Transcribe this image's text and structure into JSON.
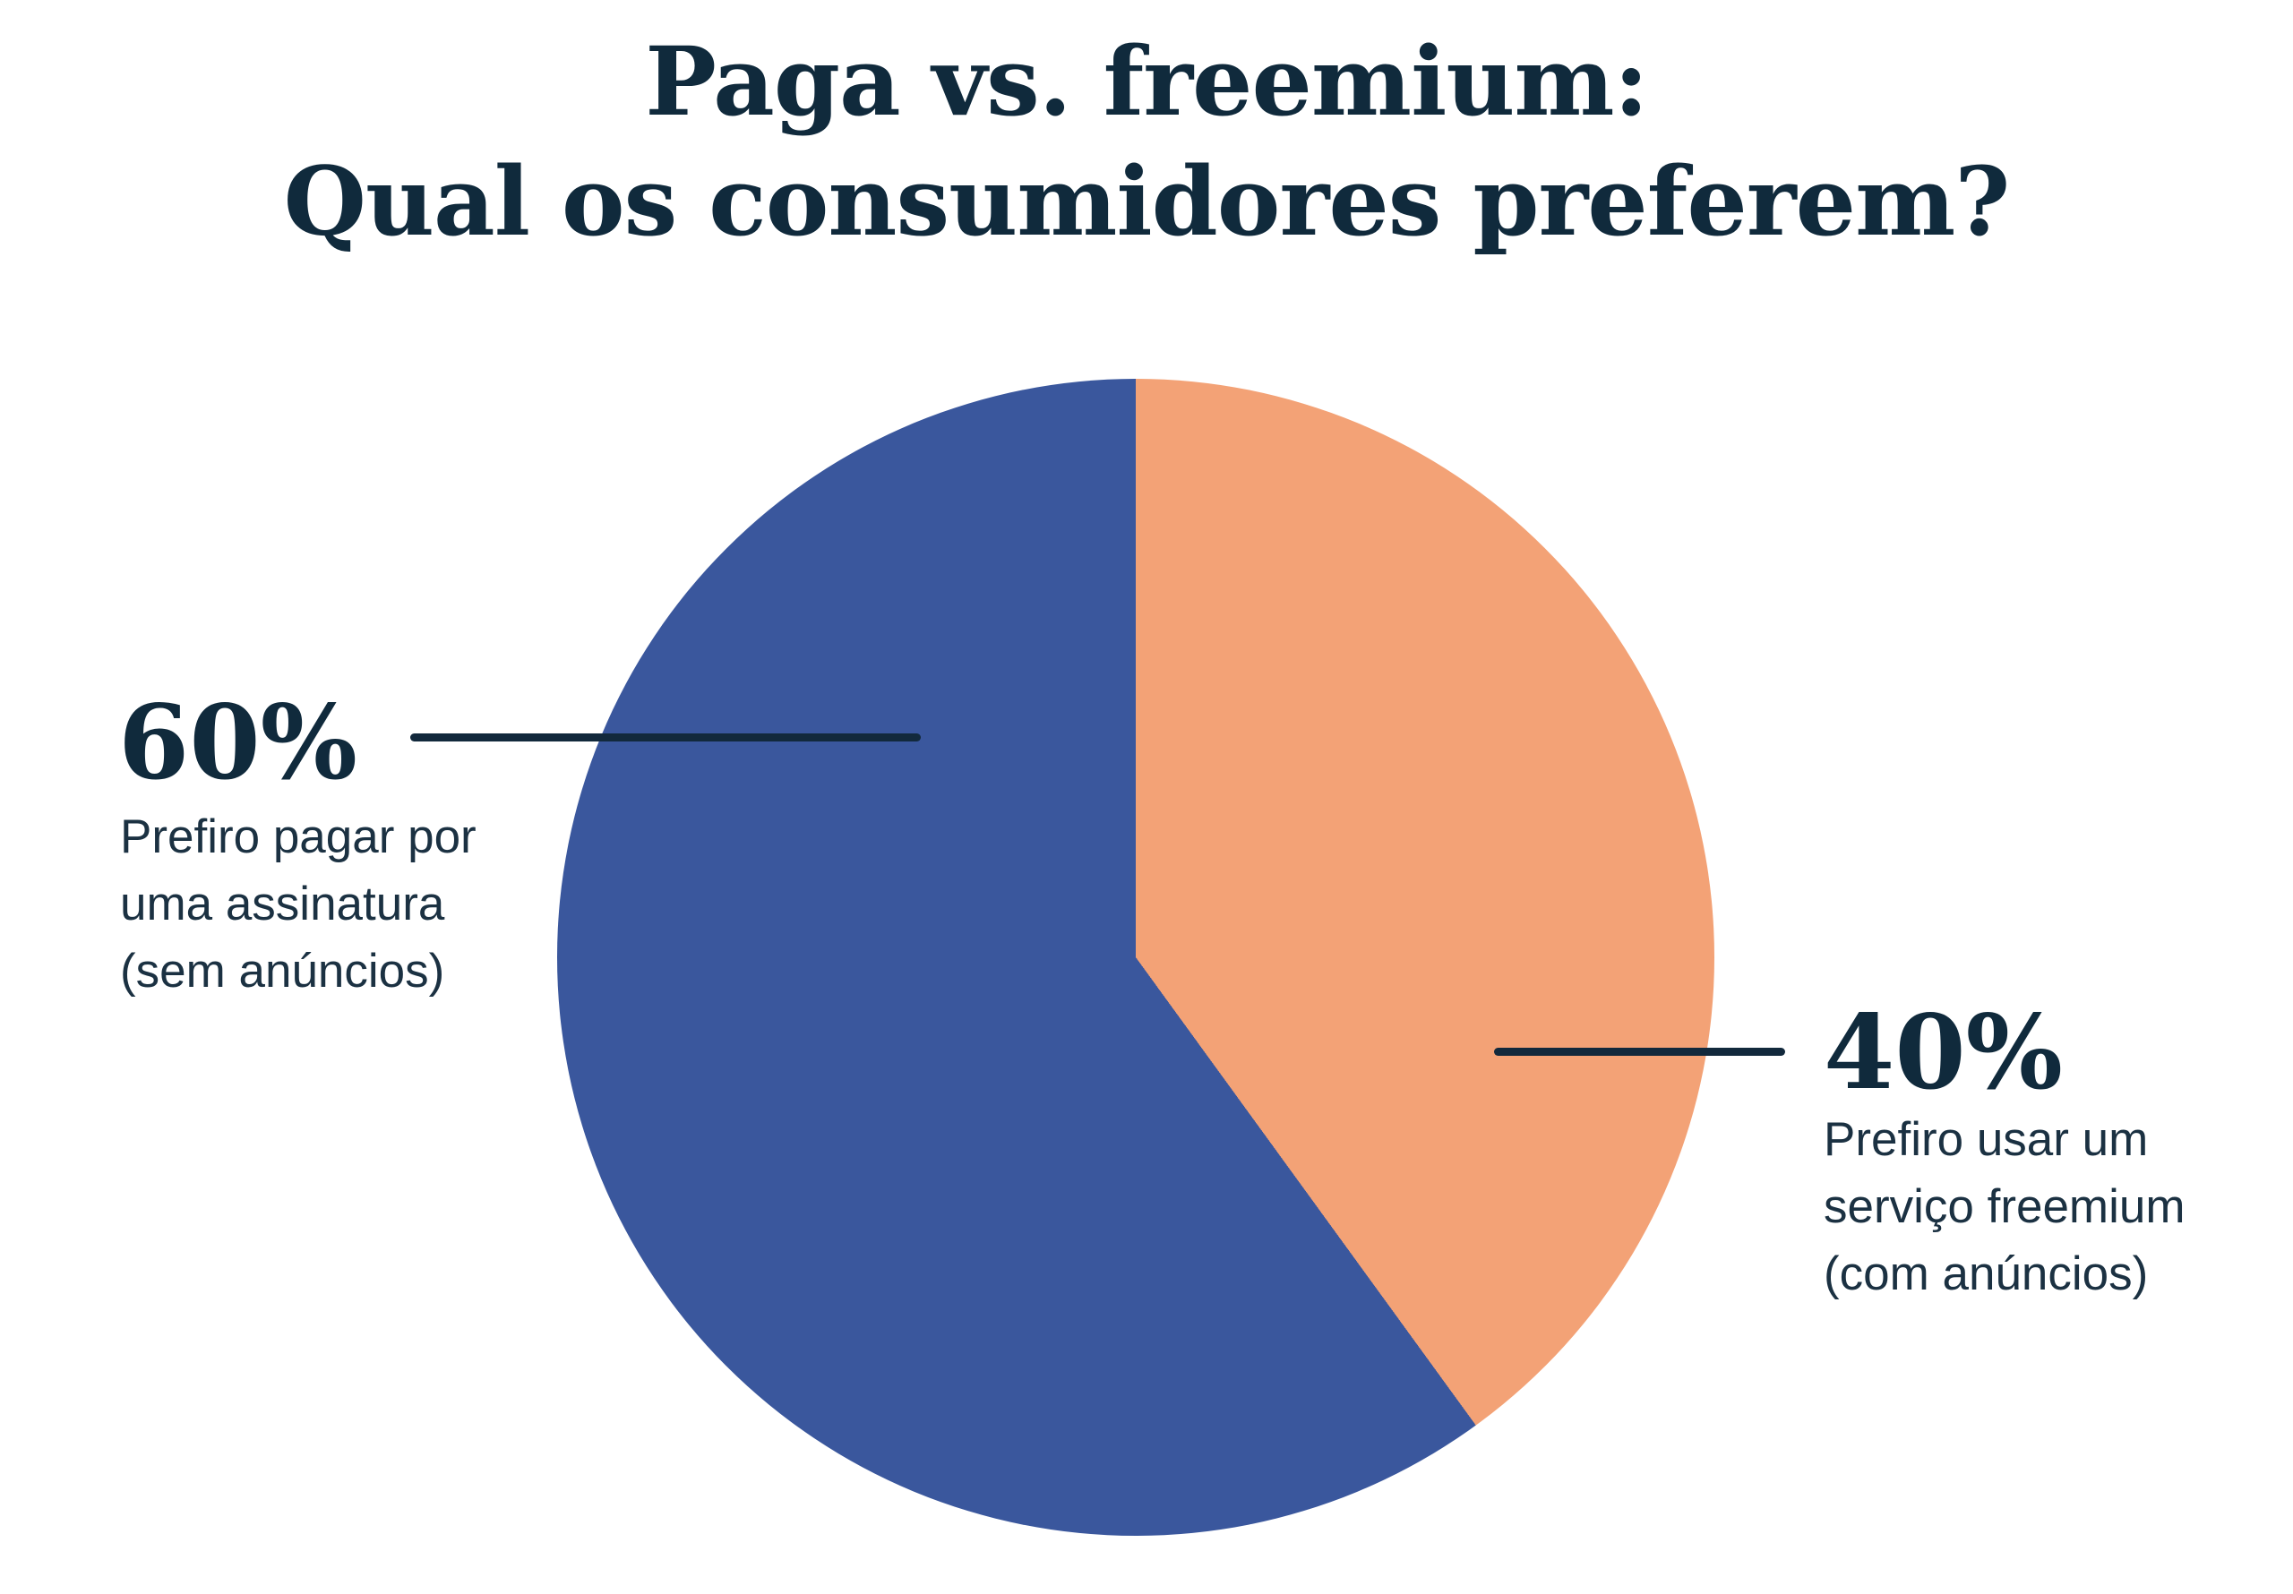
{
  "title": {
    "line1": "Paga vs. freemium:",
    "line2": "Qual os consumidores preferem?"
  },
  "chart_data": {
    "type": "pie",
    "title": "Paga vs. freemium: Qual os consumidores preferem?",
    "unit": "%",
    "direction": "clockwise",
    "start_angle_deg": 0,
    "rotation_deg": 144,
    "legend_position": "callouts-left-right",
    "slices": [
      {
        "label": "Prefiro pagar por uma assinatura (sem anúncios)",
        "value": 60,
        "percent_label": "60%",
        "color": "#3A579D",
        "callout_side": "left"
      },
      {
        "label": "Prefiro usar um serviço freemium (com anúncios)",
        "value": 40,
        "percent_label": "40%",
        "color": "#F3A276",
        "callout_side": "right"
      }
    ]
  },
  "callouts": {
    "left": {
      "percent": "60%",
      "lines": [
        "Prefiro pagar por",
        "uma assinatura",
        "(sem anúncios)"
      ]
    },
    "right": {
      "percent": "40%",
      "lines": [
        "Prefiro usar um",
        "serviço freemium",
        "(com anúncios)"
      ]
    }
  },
  "colors": {
    "background": "#FFFFFF",
    "title_text": "#102A3C",
    "body_text": "#1B3142",
    "leader_line": "#12293C",
    "slice_paid_blue": "#3A579D",
    "slice_freemium_orange": "#F3A276"
  }
}
